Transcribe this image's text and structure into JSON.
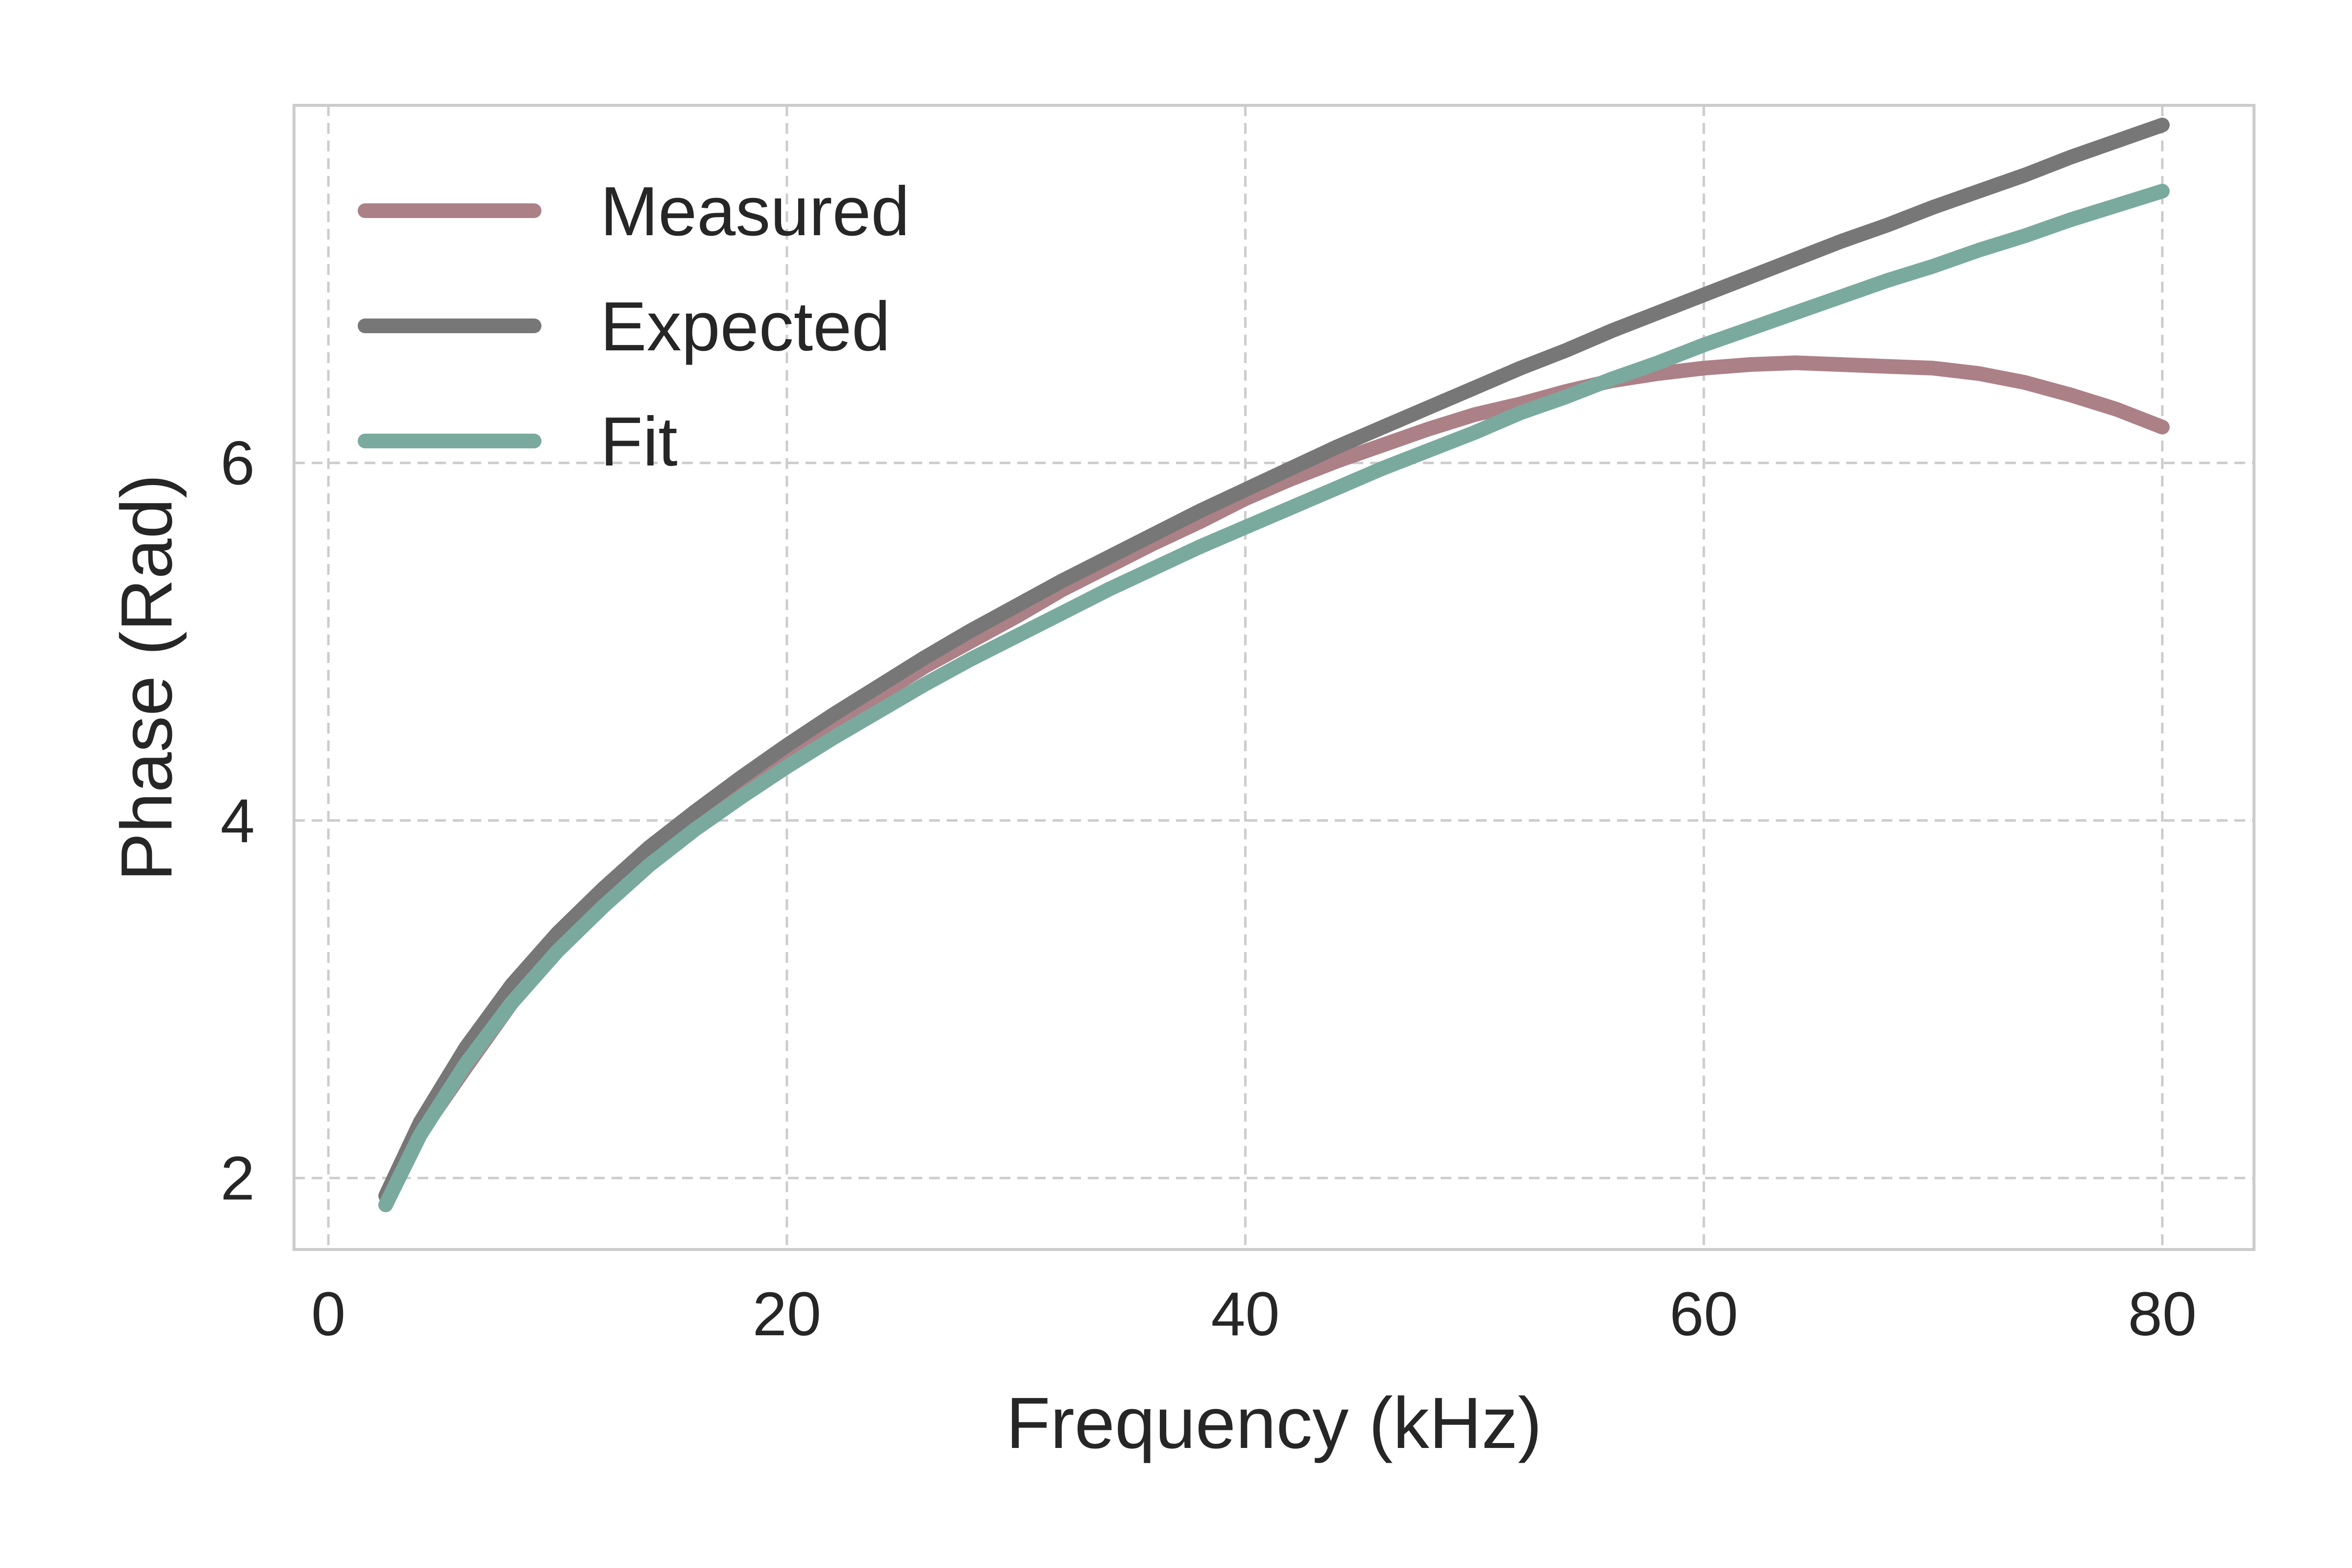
{
  "chart_data": {
    "type": "line",
    "xlabel": "Frequency (kHz)",
    "ylabel": "Phase (Rad)",
    "xlim": [
      -1.5,
      84
    ],
    "ylim": [
      1.6,
      8.0
    ],
    "xticks": [
      0,
      20,
      40,
      60,
      80
    ],
    "yticks": [
      2,
      4,
      6
    ],
    "grid": true,
    "grid_style": "dashed",
    "legend_position": "top-left",
    "series": [
      {
        "name": "Measured",
        "color": "#ac8087",
        "x": [
          2.5,
          4,
          6,
          8,
          10,
          12,
          14,
          16,
          18,
          20,
          22,
          24,
          26,
          28,
          30,
          32,
          34,
          36,
          38,
          40,
          42,
          44,
          46,
          48,
          50,
          52,
          54,
          56,
          58,
          60,
          62,
          64,
          66,
          68,
          70,
          72,
          74,
          76,
          78,
          80
        ],
        "y": [
          1.85,
          2.25,
          2.62,
          2.98,
          3.28,
          3.55,
          3.8,
          4.0,
          4.19,
          4.36,
          4.52,
          4.7,
          4.86,
          5.0,
          5.14,
          5.29,
          5.42,
          5.55,
          5.67,
          5.8,
          5.91,
          6.01,
          6.1,
          6.19,
          6.27,
          6.33,
          6.4,
          6.46,
          6.5,
          6.53,
          6.55,
          6.56,
          6.55,
          6.54,
          6.53,
          6.5,
          6.45,
          6.38,
          6.3,
          6.2
        ]
      },
      {
        "name": "Expected",
        "color": "#777777",
        "x": [
          2.5,
          4,
          6,
          8,
          10,
          12,
          14,
          16,
          18,
          20,
          22,
          24,
          26,
          28,
          30,
          32,
          34,
          36,
          38,
          40,
          42,
          44,
          46,
          48,
          50,
          52,
          54,
          56,
          58,
          60,
          62,
          64,
          66,
          68,
          70,
          72,
          74,
          76,
          78,
          80
        ],
        "y": [
          1.9,
          2.31,
          2.73,
          3.08,
          3.37,
          3.62,
          3.85,
          4.05,
          4.24,
          4.42,
          4.59,
          4.75,
          4.91,
          5.06,
          5.2,
          5.34,
          5.47,
          5.6,
          5.73,
          5.85,
          5.97,
          6.09,
          6.2,
          6.31,
          6.42,
          6.53,
          6.63,
          6.74,
          6.84,
          6.94,
          7.04,
          7.14,
          7.24,
          7.33,
          7.43,
          7.52,
          7.61,
          7.71,
          7.8,
          7.89
        ]
      },
      {
        "name": "Fit",
        "color": "#7aaa9e",
        "x": [
          2.5,
          4,
          6,
          8,
          10,
          12,
          14,
          16,
          18,
          20,
          22,
          24,
          26,
          28,
          30,
          32,
          34,
          36,
          38,
          40,
          42,
          44,
          46,
          48,
          50,
          52,
          54,
          56,
          58,
          60,
          62,
          64,
          66,
          68,
          70,
          72,
          74,
          76,
          78,
          80
        ],
        "y": [
          1.85,
          2.24,
          2.64,
          2.98,
          3.27,
          3.52,
          3.75,
          3.95,
          4.13,
          4.3,
          4.46,
          4.61,
          4.76,
          4.9,
          5.03,
          5.16,
          5.29,
          5.41,
          5.53,
          5.64,
          5.75,
          5.86,
          5.97,
          6.07,
          6.17,
          6.28,
          6.37,
          6.47,
          6.56,
          6.66,
          6.75,
          6.84,
          6.93,
          7.02,
          7.1,
          7.19,
          7.27,
          7.36,
          7.44,
          7.52
        ]
      }
    ]
  }
}
